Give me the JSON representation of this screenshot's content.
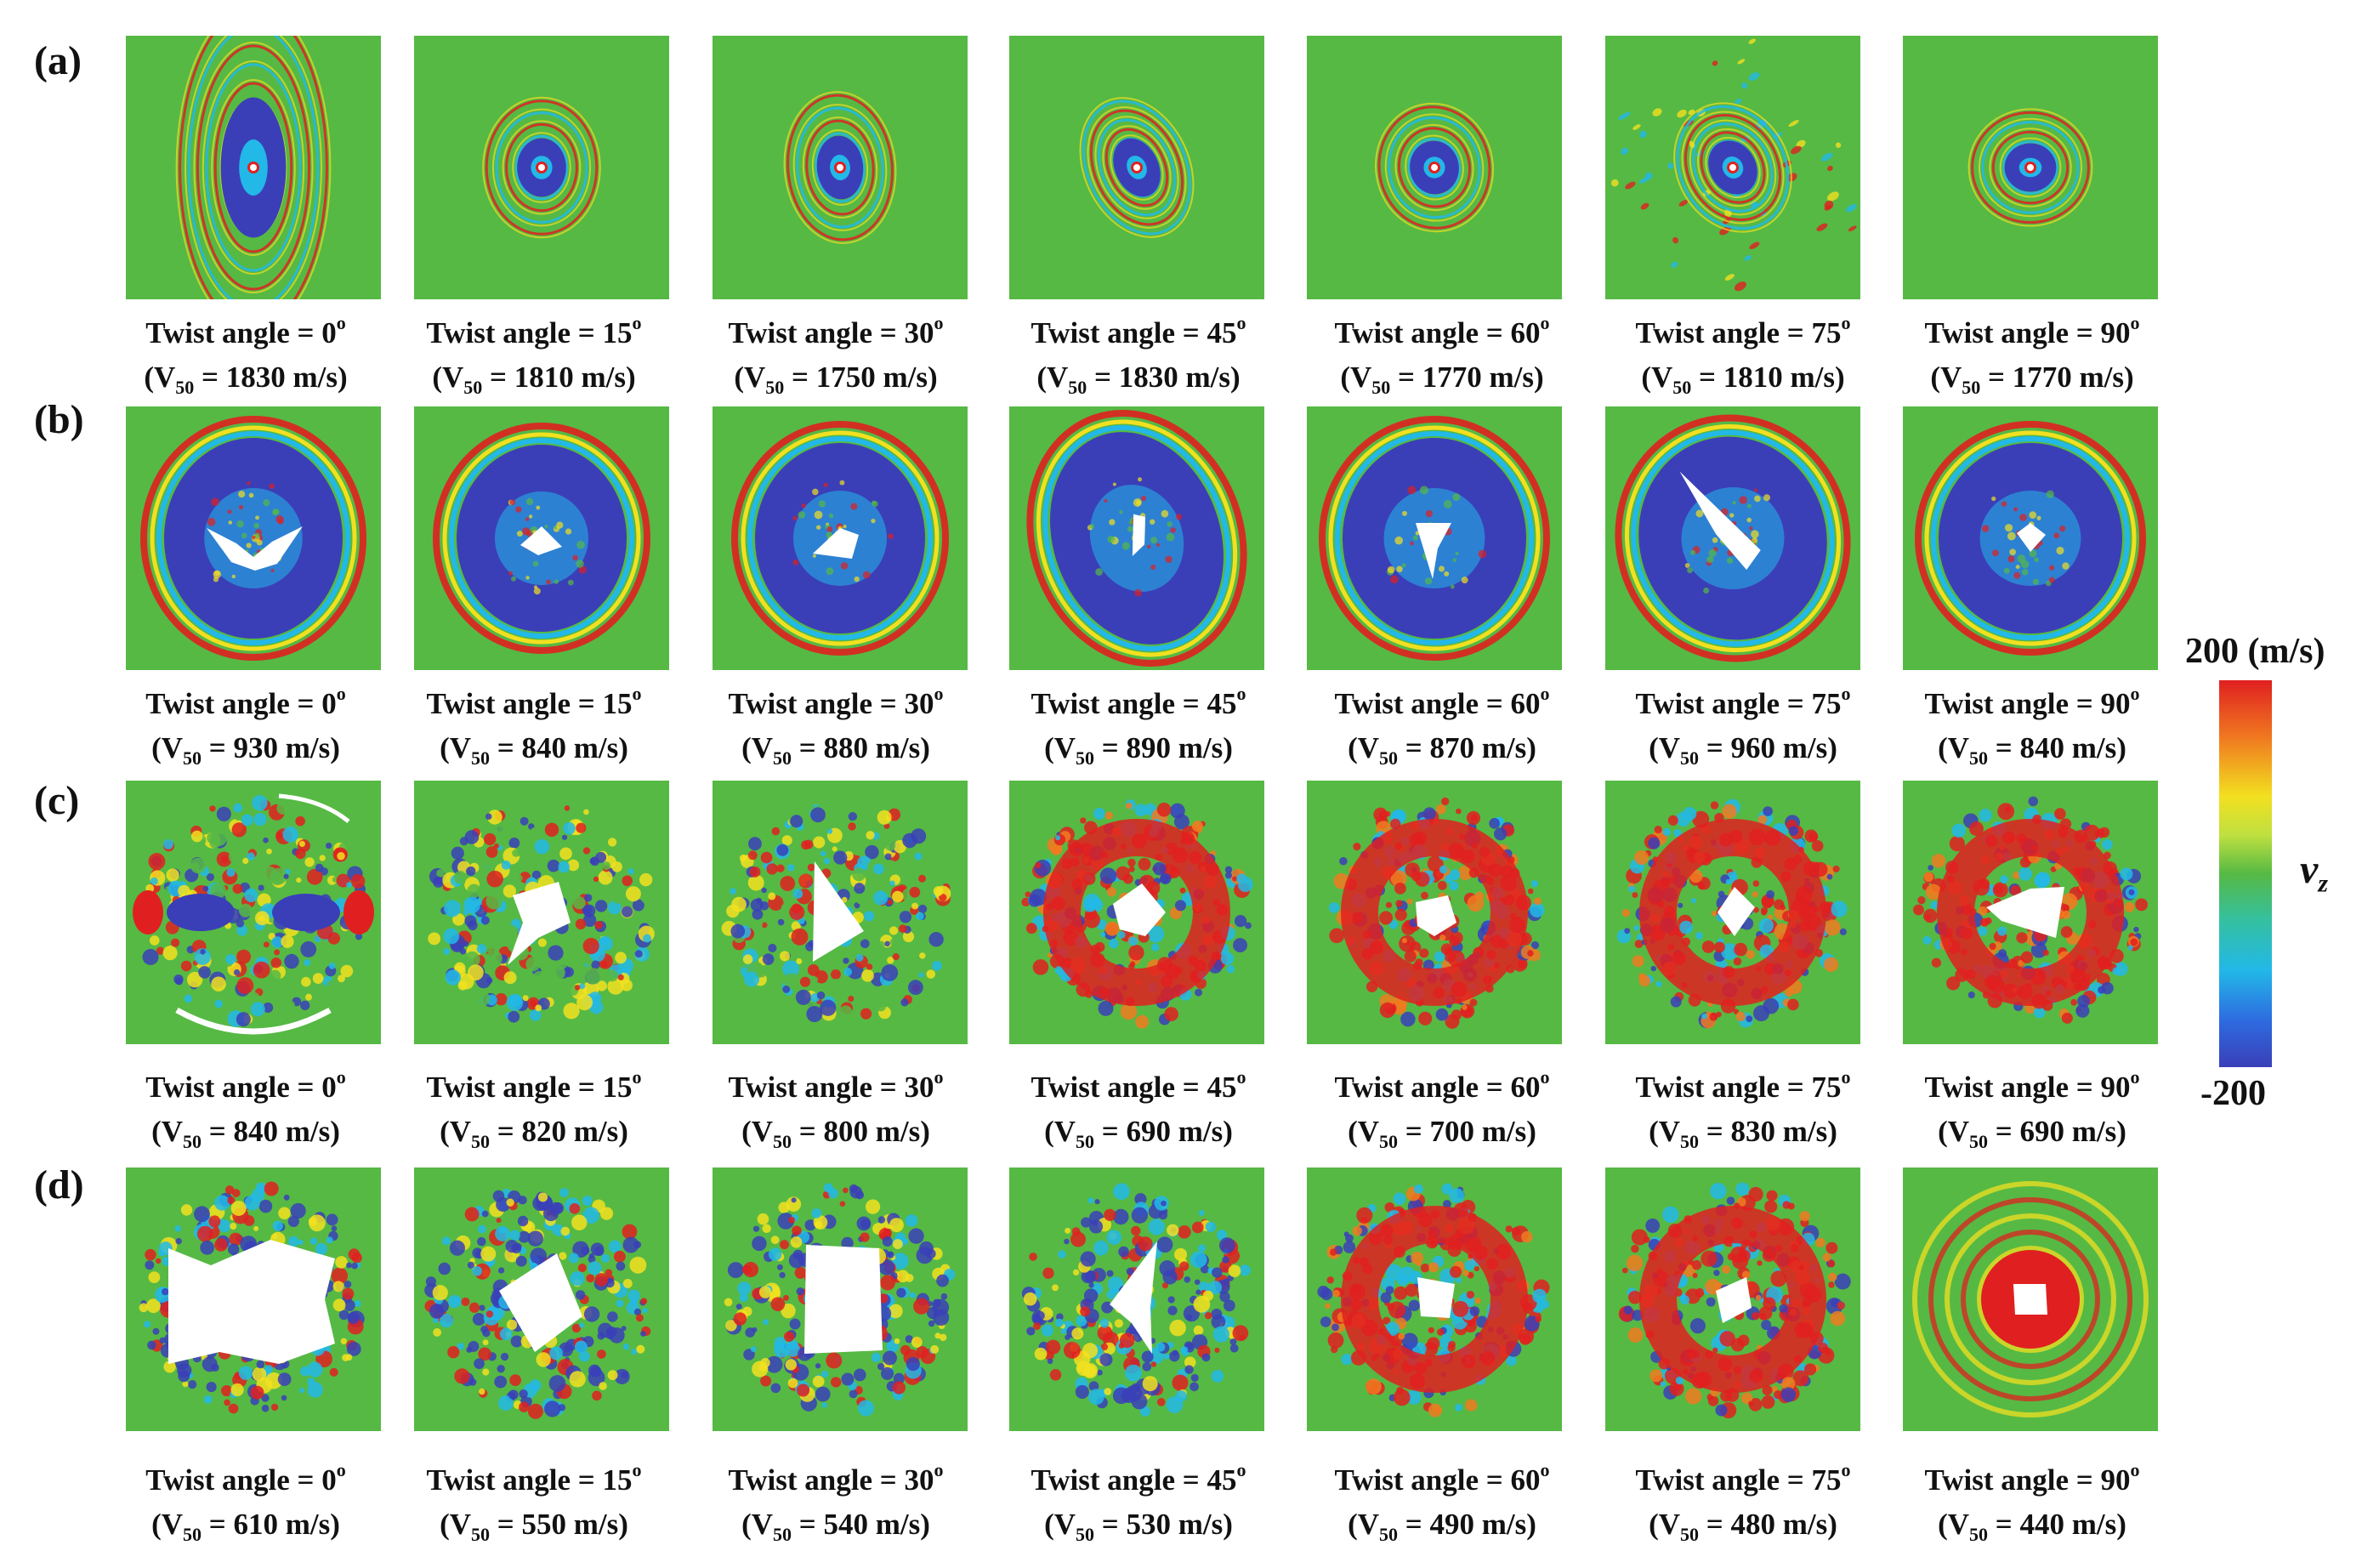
{
  "rows": [
    {
      "label": "(a)",
      "panels": [
        {
          "angle": "0",
          "v50": "1830"
        },
        {
          "angle": "15",
          "v50": "1810"
        },
        {
          "angle": "30",
          "v50": "1750"
        },
        {
          "angle": "45",
          "v50": "1830"
        },
        {
          "angle": "60",
          "v50": "1770"
        },
        {
          "angle": "75",
          "v50": "1810"
        },
        {
          "angle": "90",
          "v50": "1770"
        }
      ]
    },
    {
      "label": "(b)",
      "panels": [
        {
          "angle": "0",
          "v50": "930"
        },
        {
          "angle": "15",
          "v50": "840"
        },
        {
          "angle": "30",
          "v50": "880"
        },
        {
          "angle": "45",
          "v50": "890"
        },
        {
          "angle": "60",
          "v50": "870"
        },
        {
          "angle": "75",
          "v50": "960"
        },
        {
          "angle": "90",
          "v50": "840"
        }
      ]
    },
    {
      "label": "(c)",
      "panels": [
        {
          "angle": "0",
          "v50": "840"
        },
        {
          "angle": "15",
          "v50": "820"
        },
        {
          "angle": "30",
          "v50": "800"
        },
        {
          "angle": "45",
          "v50": "690"
        },
        {
          "angle": "60",
          "v50": "700"
        },
        {
          "angle": "75",
          "v50": "830"
        },
        {
          "angle": "90",
          "v50": "690"
        }
      ]
    },
    {
      "label": "(d)",
      "panels": [
        {
          "angle": "0",
          "v50": "610"
        },
        {
          "angle": "15",
          "v50": "550"
        },
        {
          "angle": "30",
          "v50": "540"
        },
        {
          "angle": "45",
          "v50": "530"
        },
        {
          "angle": "60",
          "v50": "490"
        },
        {
          "angle": "75",
          "v50": "480"
        },
        {
          "angle": "90",
          "v50": "440"
        }
      ]
    }
  ],
  "caption_text": {
    "twist_prefix": "Twist angle = ",
    "degree_mark": "o",
    "v_letter": "V",
    "v_subscript": "50",
    "v_suffix": " m/s"
  },
  "colorbar": {
    "max_label": "200 (m/s)",
    "min_label": "-200",
    "variable": "v",
    "variable_subscript": "z",
    "colors": {
      "high": "#e02020",
      "orange": "#f07a20",
      "yellow": "#f2e020",
      "zero": "#56b944",
      "cyan": "#22b8e8",
      "low": "#3a3fb8"
    }
  }
}
